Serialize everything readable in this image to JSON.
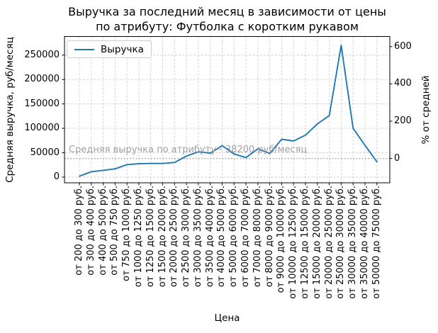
{
  "chart_data": {
    "type": "line",
    "title": "Выручка за последний месяц в зависимости от цены\nпо атрибуту: Футболка с коротким рукавом",
    "xlabel": "Цена",
    "ylabel": "Средняя выручка, руб/месяц",
    "ylabel_right": "% от средней",
    "categories": [
      "от 200 до 300 руб.",
      "от 300 до 400 руб.",
      "от 400 до 500 руб.",
      "от 500 до 750 руб.",
      "от 750 до 1000 руб.",
      "от 1000 до 1250 руб.",
      "от 1250 до 1500 руб.",
      "от 1500 до 2000 руб.",
      "от 2000 до 2500 руб.",
      "от 2500 до 3000 руб.",
      "от 3000 до 3500 руб.",
      "от 3500 до 4000 руб.",
      "от 4000 до 5000 руб.",
      "от 5000 до 6000 руб.",
      "от 6000 до 7000 руб.",
      "от 7000 до 8000 руб.",
      "от 8000 до 9000 руб.",
      "от 9000 до 10000 руб.",
      "от 10000 до 12500 руб.",
      "от 12500 до 15000 руб.",
      "от 15000 до 20000 руб.",
      "от 20000 до 25000 руб.",
      "от 25000 до 30000 руб.",
      "от 30000 до 35000 руб.",
      "от 35000 до 40000 руб.",
      "от 50000 до 75000 руб."
    ],
    "series": [
      {
        "name": "Выручка",
        "values": [
          2000,
          11000,
          14000,
          17000,
          25500,
          27500,
          28000,
          28000,
          30000,
          43000,
          52000,
          49000,
          64500,
          47500,
          40000,
          58000,
          48500,
          77500,
          74000,
          86000,
          109000,
          126000,
          270000,
          100000,
          65000,
          31500
        ]
      }
    ],
    "yticks_left": [
      0,
      50000,
      100000,
      150000,
      200000,
      250000
    ],
    "yticks_right_percent": [
      0,
      200,
      400,
      600
    ],
    "ylim": [
      -12000,
      288000
    ],
    "grid": true,
    "legend_position": "upper left",
    "line_color": "#1f77b4",
    "mean_line": {
      "value": 38200,
      "style": "dotted",
      "label": "Средняя выручка по атрибуту - 38200 руб/месяц"
    }
  }
}
